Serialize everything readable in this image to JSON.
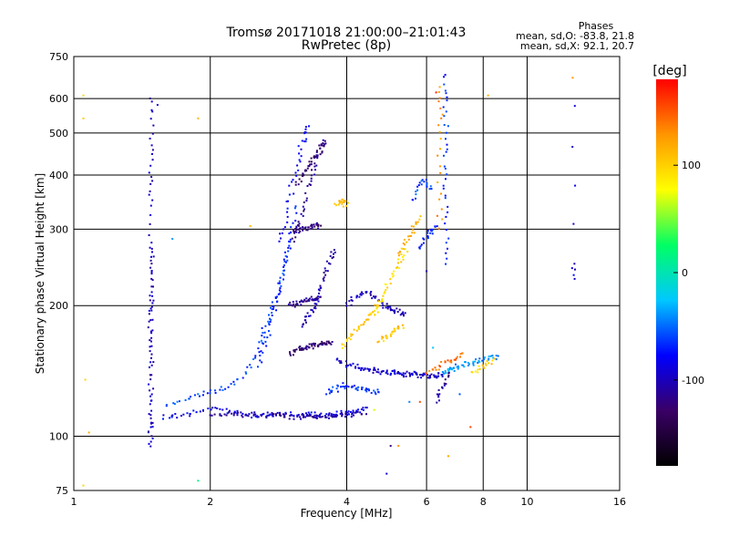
{
  "chart_data": {
    "type": "scatter",
    "title": "Tromsø 20171018 21:00:00–21:01:43",
    "subtitle": "RwPretec (8p)",
    "xlabel": "Frequency [MHz]",
    "ylabel": "Stationary phase Virtual Height [km]",
    "x_scale": "log",
    "y_scale": "log",
    "xlim": [
      1,
      16
    ],
    "ylim": [
      75,
      750
    ],
    "grid": true,
    "x_ticks": [
      1,
      2,
      4,
      6,
      8,
      10,
      16
    ],
    "y_ticks": [
      75,
      100,
      200,
      300,
      400,
      500,
      600,
      750
    ],
    "stats": {
      "header": "Phases",
      "line_o": "mean, sd,O: -83.8, 21.8",
      "line_x": "mean, sd,X:  92.1, 20.7"
    },
    "colorbar": {
      "title": "[deg]",
      "min": -180,
      "max": 180,
      "ticks": [
        100,
        0,
        -100
      ],
      "colors": [
        "#000000",
        "#3a0066",
        "#0000ff",
        "#00c8ff",
        "#00ff64",
        "#ffff00",
        "#ff9600",
        "#ff0000"
      ]
    },
    "traces": [
      {
        "x": [
          1.58,
          1.65,
          1.72,
          1.8,
          1.9,
          2.0,
          2.1,
          2.2,
          2.3,
          2.4,
          2.5,
          2.6,
          2.7,
          2.8,
          2.9,
          3.0,
          3.1,
          3.2,
          3.3,
          3.4,
          3.5,
          3.6,
          3.7,
          3.8,
          3.9,
          4.0,
          4.1,
          4.2,
          4.3,
          4.4
        ],
        "y": [
          110,
          111,
          112,
          113,
          114,
          115,
          115,
          114,
          113,
          112,
          112,
          112,
          112,
          112,
          112,
          112,
          112,
          112,
          112,
          112,
          112,
          112,
          112,
          112,
          113,
          113,
          114,
          115,
          115,
          116
        ],
        "phase": -85
      },
      {
        "x": [
          2.0,
          2.1,
          2.2,
          2.3,
          2.4,
          2.5,
          2.6,
          2.7,
          2.8,
          2.9,
          3.0,
          3.1,
          3.2,
          3.3,
          3.4,
          3.5,
          3.6,
          3.7,
          3.8,
          3.9,
          4.0,
          4.2,
          4.4
        ],
        "y": [
          112,
          112,
          113,
          113,
          112,
          112,
          112,
          112,
          112,
          112,
          111,
          111,
          111,
          111,
          111,
          111,
          111,
          111,
          111,
          112,
          112,
          113,
          113
        ],
        "phase": -110
      },
      {
        "x": [
          1.6,
          1.7,
          1.8,
          1.9,
          2.0,
          2.1,
          2.2,
          2.3,
          2.4,
          2.5,
          2.55,
          2.6,
          2.65,
          2.7,
          2.75,
          2.8,
          2.85,
          2.9,
          2.95,
          3.0
        ],
        "y": [
          118,
          120,
          122,
          124,
          126,
          128,
          130,
          135,
          140,
          150,
          160,
          170,
          180,
          190,
          200,
          210,
          225,
          240,
          260,
          280
        ],
        "phase": -60
      },
      {
        "x": [
          2.55,
          2.6,
          2.65,
          2.7,
          2.75,
          2.8,
          2.85,
          2.9,
          2.95,
          3.0,
          3.05,
          3.1
        ],
        "y": [
          145,
          155,
          165,
          175,
          190,
          205,
          220,
          240,
          260,
          285,
          310,
          340
        ],
        "phase": -70
      },
      {
        "x": [
          2.85,
          2.9,
          2.95,
          3.0,
          3.05,
          3.1,
          3.15,
          3.2,
          3.25,
          3.3
        ],
        "y": [
          280,
          300,
          330,
          360,
          390,
          420,
          450,
          480,
          500,
          520
        ],
        "phase": -85
      },
      {
        "x": [
          3.05,
          3.1,
          3.15,
          3.2,
          3.25,
          3.3,
          3.35,
          3.4,
          3.45,
          3.5,
          3.55
        ],
        "y": [
          280,
          295,
          310,
          330,
          350,
          380,
          400,
          420,
          440,
          460,
          480
        ],
        "phase": -115
      },
      {
        "x": [
          3.05,
          3.1,
          3.15,
          3.2,
          3.25,
          3.3,
          3.35,
          3.4,
          3.45,
          3.5
        ],
        "y": [
          300,
          300,
          301,
          302,
          302,
          303,
          303,
          304,
          305,
          306
        ],
        "phase": -120
      },
      {
        "x": [
          3.1,
          3.15,
          3.2,
          3.25,
          3.3,
          3.35,
          3.4,
          3.45,
          3.5,
          3.55,
          3.6
        ],
        "y": [
          380,
          390,
          400,
          410,
          420,
          430,
          440,
          450,
          460,
          470,
          480
        ],
        "phase": -125
      },
      {
        "x": [
          3.0,
          3.05,
          3.1,
          3.15,
          3.2,
          3.25,
          3.3,
          3.35,
          3.4,
          3.45,
          3.5,
          3.55,
          3.6,
          3.65,
          3.7
        ],
        "y": [
          155,
          157,
          158,
          159,
          160,
          160,
          161,
          161,
          162,
          162,
          163,
          163,
          164,
          164,
          165
        ],
        "phase": -125
      },
      {
        "x": [
          3.0,
          3.05,
          3.1,
          3.15,
          3.2,
          3.25,
          3.3,
          3.35,
          3.4,
          3.45,
          3.5
        ],
        "y": [
          200,
          201,
          202,
          203,
          204,
          205,
          206,
          207,
          208,
          209,
          210
        ],
        "phase": -115
      },
      {
        "x": [
          3.2,
          3.25,
          3.3,
          3.35,
          3.4,
          3.45,
          3.5,
          3.55,
          3.6,
          3.65,
          3.7,
          3.75
        ],
        "y": [
          180,
          185,
          190,
          195,
          200,
          210,
          220,
          230,
          240,
          250,
          260,
          270
        ],
        "phase": -105
      },
      {
        "x": [
          3.6,
          3.7,
          3.8,
          3.9,
          4.0,
          4.1,
          4.2,
          4.3,
          4.4,
          4.5,
          4.6,
          4.7
        ],
        "y": [
          125,
          127,
          129,
          130,
          131,
          130,
          129,
          128,
          128,
          127,
          127,
          126
        ],
        "phase": -65
      },
      {
        "x": [
          3.8,
          3.9,
          4.0,
          4.1,
          4.2,
          4.3,
          4.4,
          4.5,
          4.6,
          4.7,
          4.8,
          4.9,
          5.0,
          5.1,
          5.2,
          5.3,
          5.4,
          5.5,
          5.6,
          5.7,
          5.8,
          5.9,
          6.0,
          6.1,
          6.2,
          6.3,
          6.4,
          6.5
        ],
        "y": [
          150,
          148,
          146,
          145,
          144,
          143,
          143,
          142,
          142,
          141,
          141,
          140,
          140,
          140,
          140,
          139,
          139,
          139,
          139,
          139,
          138,
          138,
          138,
          138,
          138,
          138,
          138,
          138
        ],
        "phase": -95
      },
      {
        "x": [
          4.0,
          4.1,
          4.2,
          4.3,
          4.4,
          4.5,
          4.6,
          4.7,
          4.8,
          4.9,
          5.0,
          5.1,
          5.2,
          5.3,
          5.4
        ],
        "y": [
          200,
          205,
          210,
          212,
          215,
          213,
          210,
          205,
          200,
          198,
          196,
          195,
          194,
          193,
          192
        ],
        "phase": -100
      },
      {
        "x": [
          3.9,
          4.0,
          4.1,
          4.2,
          4.3,
          4.4,
          4.5,
          4.6,
          4.7,
          4.8
        ],
        "y": [
          160,
          165,
          170,
          175,
          180,
          185,
          190,
          195,
          200,
          205
        ],
        "phase": 100
      },
      {
        "x": [
          4.6,
          4.7,
          4.8,
          4.9,
          5.0,
          5.1,
          5.2,
          5.3,
          5.4
        ],
        "y": [
          190,
          200,
          210,
          220,
          230,
          240,
          250,
          260,
          270
        ],
        "phase": 95
      },
      {
        "x": [
          4.7,
          4.8,
          4.9,
          5.0,
          5.1,
          5.2,
          5.3
        ],
        "y": [
          165,
          168,
          170,
          172,
          175,
          178,
          180
        ],
        "phase": 105
      },
      {
        "x": [
          5.2,
          5.3,
          5.4,
          5.5,
          5.6,
          5.7,
          5.8
        ],
        "y": [
          260,
          270,
          280,
          290,
          300,
          310,
          320
        ],
        "phase": 110
      },
      {
        "x": [
          3.8,
          3.85,
          3.9,
          3.95,
          4.0
        ],
        "y": [
          340,
          345,
          350,
          345,
          340
        ],
        "phase": 115
      },
      {
        "x": [
          5.6,
          5.7,
          5.8,
          5.9,
          6.0,
          6.1
        ],
        "y": [
          350,
          365,
          380,
          390,
          380,
          370
        ],
        "phase": -60
      },
      {
        "x": [
          5.8,
          5.9,
          6.0,
          6.1,
          6.2,
          6.3
        ],
        "y": [
          270,
          280,
          290,
          295,
          300,
          305
        ],
        "phase": -70
      },
      {
        "x": [
          6.5,
          6.6,
          6.7,
          6.8,
          6.9,
          7.0,
          7.2,
          7.4,
          7.6,
          7.8,
          8.0,
          8.2,
          8.4,
          8.6
        ],
        "y": [
          140,
          141,
          142,
          143,
          144,
          145,
          146,
          147,
          148,
          149,
          150,
          151,
          152,
          153
        ],
        "phase": -40
      },
      {
        "x": [
          6.0,
          6.2,
          6.4,
          6.6,
          6.8,
          7.0,
          7.2
        ],
        "y": [
          140,
          142,
          145,
          148,
          150,
          152,
          155
        ],
        "phase": 140
      },
      {
        "x": [
          7.6,
          7.8,
          8.0,
          8.2,
          8.4
        ],
        "y": [
          140,
          142,
          145,
          147,
          150
        ],
        "phase": 100
      },
      {
        "x": [
          6.3,
          6.4,
          6.5,
          6.6,
          6.7
        ],
        "y": [
          120,
          125,
          130,
          135,
          140
        ],
        "phase": -110
      },
      {
        "x": [
          1.48,
          1.48,
          1.48,
          1.48,
          1.48,
          1.48,
          1.48,
          1.48,
          1.48,
          1.48,
          1.48,
          1.48,
          1.48,
          1.48,
          1.48,
          1.48,
          1.48,
          1.48,
          1.48,
          1.48,
          1.48,
          1.48,
          1.48,
          1.48,
          1.48
        ],
        "y": [
          95,
          100,
          105,
          110,
          118,
          125,
          135,
          145,
          155,
          165,
          175,
          185,
          195,
          205,
          215,
          230,
          245,
          260,
          280,
          340,
          380,
          420,
          470,
          540,
          600
        ],
        "phase": -100
      },
      {
        "x": [
          6.62,
          6.62,
          6.62,
          6.62,
          6.62,
          6.62,
          6.62,
          6.62,
          6.62,
          6.62
        ],
        "y": [
          250,
          280,
          320,
          360,
          400,
          450,
          500,
          560,
          620,
          680
        ],
        "phase": -70
      },
      {
        "x": [
          6.42,
          6.42,
          6.42,
          6.42,
          6.42,
          6.42
        ],
        "y": [
          300,
          350,
          420,
          500,
          570,
          640
        ],
        "phase": 130
      },
      {
        "x": [
          12.7,
          12.7,
          12.7
        ],
        "y": [
          230,
          250,
          575
        ],
        "phase": -90
      }
    ],
    "sparse_points": [
      {
        "x": 1.05,
        "y": 610,
        "phase": 110
      },
      {
        "x": 1.05,
        "y": 540,
        "phase": 100
      },
      {
        "x": 1.08,
        "y": 102,
        "phase": 110
      },
      {
        "x": 1.05,
        "y": 77,
        "phase": 90
      },
      {
        "x": 1.06,
        "y": 135,
        "phase": 100
      },
      {
        "x": 1.88,
        "y": 540,
        "phase": 100
      },
      {
        "x": 1.88,
        "y": 79,
        "phase": 30
      },
      {
        "x": 1.53,
        "y": 580,
        "phase": -80
      },
      {
        "x": 1.65,
        "y": 285,
        "phase": -40
      },
      {
        "x": 2.45,
        "y": 305,
        "phase": 110
      },
      {
        "x": 4.9,
        "y": 82,
        "phase": -100
      },
      {
        "x": 5.2,
        "y": 95,
        "phase": 120
      },
      {
        "x": 5.8,
        "y": 120,
        "phase": 150
      },
      {
        "x": 6.7,
        "y": 90,
        "phase": 110
      },
      {
        "x": 7.5,
        "y": 105,
        "phase": 150
      },
      {
        "x": 8.2,
        "y": 610,
        "phase": 110
      },
      {
        "x": 6.3,
        "y": 620,
        "phase": 160
      },
      {
        "x": 12.6,
        "y": 670,
        "phase": 140
      },
      {
        "x": 6.2,
        "y": 160,
        "phase": -40
      },
      {
        "x": 6.0,
        "y": 240,
        "phase": -90
      },
      {
        "x": 5.5,
        "y": 120,
        "phase": -30
      },
      {
        "x": 7.1,
        "y": 125,
        "phase": -60
      },
      {
        "x": 5.0,
        "y": 95,
        "phase": -120
      },
      {
        "x": 4.6,
        "y": 115,
        "phase": 60
      }
    ]
  }
}
